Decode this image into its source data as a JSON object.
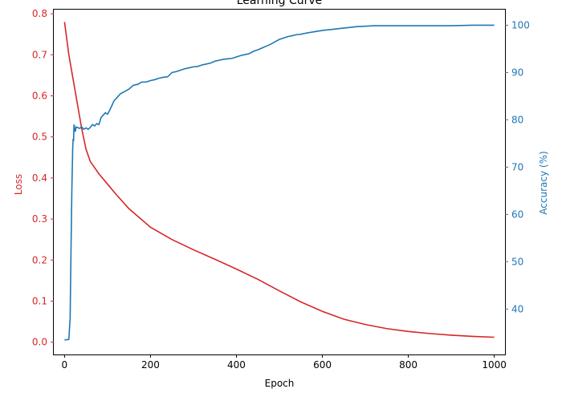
{
  "chart_data": {
    "type": "line",
    "title": "Learning Curve",
    "xlabel": "Epoch",
    "ylabel_left": "Loss",
    "ylabel_right": "Accuracy (%)",
    "xlim": [
      -25,
      1025
    ],
    "ylim_left": [
      -0.03,
      0.81
    ],
    "ylim_right": [
      30.4,
      103.3
    ],
    "x_ticks": [
      0,
      200,
      400,
      600,
      800,
      1000
    ],
    "y_left_ticks": [
      0.0,
      0.1,
      0.2,
      0.3,
      0.4,
      0.5,
      0.6,
      0.7,
      0.8
    ],
    "y_right_ticks": [
      40,
      50,
      60,
      70,
      80,
      90,
      100
    ],
    "grid": false,
    "colors": {
      "loss": "#d62728",
      "accuracy": "#1f77b4",
      "left_axis": "#d62728",
      "right_axis": "#1f77b4"
    },
    "series": [
      {
        "axis": "left",
        "x": [
          0,
          10,
          20,
          30,
          40,
          50,
          60,
          70,
          80,
          100,
          120,
          150,
          200,
          250,
          300,
          350,
          400,
          450,
          500,
          550,
          600,
          650,
          700,
          750,
          800,
          850,
          900,
          950,
          1000
        ],
        "values": [
          0.78,
          0.7,
          0.64,
          0.58,
          0.52,
          0.47,
          0.44,
          0.425,
          0.41,
          0.385,
          0.36,
          0.325,
          0.28,
          0.25,
          0.225,
          0.202,
          0.178,
          0.153,
          0.125,
          0.098,
          0.075,
          0.056,
          0.043,
          0.033,
          0.026,
          0.021,
          0.017,
          0.014,
          0.012
        ]
      },
      {
        "axis": "right",
        "x": [
          0,
          5,
          10,
          13,
          15,
          17,
          19,
          20,
          21,
          22,
          24,
          25,
          27,
          30,
          35,
          40,
          45,
          50,
          55,
          60,
          65,
          70,
          75,
          80,
          85,
          90,
          95,
          100,
          105,
          110,
          115,
          120,
          125,
          130,
          140,
          150,
          160,
          170,
          180,
          190,
          200,
          210,
          220,
          230,
          240,
          250,
          260,
          270,
          280,
          290,
          300,
          310,
          320,
          330,
          340,
          350,
          360,
          370,
          380,
          390,
          400,
          410,
          420,
          430,
          440,
          450,
          460,
          470,
          480,
          490,
          500,
          510,
          520,
          530,
          540,
          550,
          560,
          580,
          600,
          620,
          640,
          660,
          680,
          700,
          720,
          750,
          800,
          850,
          900,
          950,
          1000
        ],
        "values": [
          33.5,
          33.5,
          33.6,
          38,
          52,
          65,
          74,
          76,
          75.5,
          79,
          78,
          77.5,
          78.5,
          78.4,
          78.2,
          78.5,
          78.0,
          78.3,
          78.0,
          78.4,
          79.0,
          78.7,
          79.2,
          79.0,
          80.5,
          81.0,
          81.5,
          81.2,
          82.0,
          83.0,
          84.0,
          84.5,
          85.0,
          85.5,
          86.0,
          86.5,
          87.3,
          87.5,
          88.0,
          88.0,
          88.3,
          88.5,
          88.8,
          89.0,
          89.1,
          90.0,
          90.2,
          90.5,
          90.8,
          91.0,
          91.2,
          91.3,
          91.6,
          91.8,
          92.0,
          92.4,
          92.6,
          92.8,
          92.9,
          93.0,
          93.3,
          93.6,
          93.8,
          94.0,
          94.5,
          94.8,
          95.2,
          95.6,
          96.0,
          96.5,
          97.0,
          97.3,
          97.6,
          97.8,
          98.0,
          98.1,
          98.3,
          98.6,
          98.9,
          99.1,
          99.3,
          99.5,
          99.7,
          99.8,
          99.9,
          99.9,
          99.9,
          99.9,
          99.9,
          100.0,
          100.0
        ]
      }
    ]
  }
}
